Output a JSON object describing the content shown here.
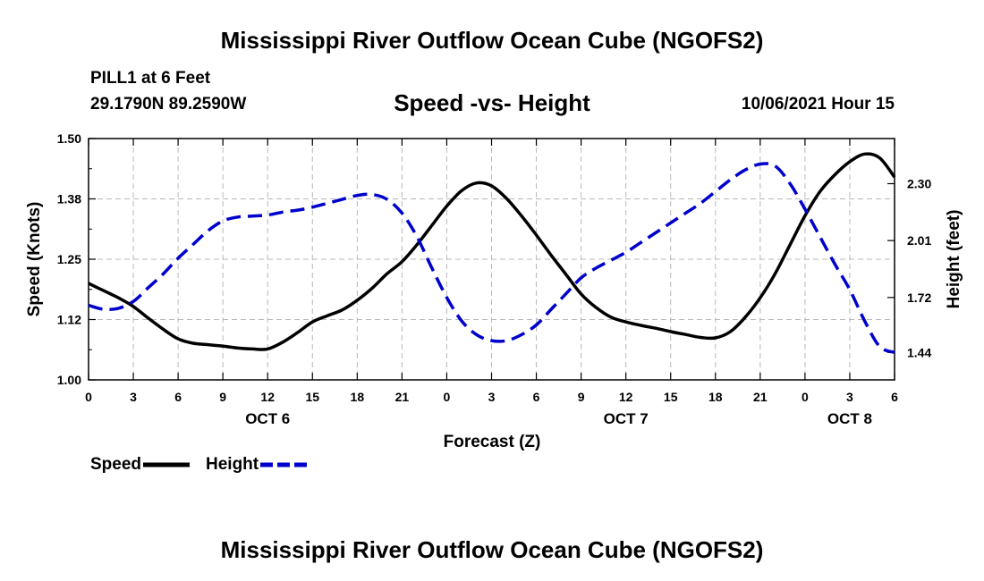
{
  "titles": {
    "top": "Mississippi River Outflow Ocean Cube (NGOFS2)",
    "bottom": "Mississippi River Outflow Ocean Cube (NGOFS2)"
  },
  "header": {
    "station": "PILL1 at 6 Feet",
    "coords": "29.1790N  89.2590W",
    "subtitle": "Speed -vs- Height",
    "datetime": "10/06/2021 Hour 15"
  },
  "chart_data": {
    "type": "line",
    "xlabel": "Forecast (Z)",
    "ylabel_left": "Speed (Knots)",
    "ylabel_right": "Height (feet)",
    "x_range": [
      0,
      54
    ],
    "x_tick_values": [
      0,
      3,
      6,
      9,
      12,
      15,
      18,
      21,
      24,
      27,
      30,
      33,
      36,
      39,
      42,
      45,
      48,
      51,
      54
    ],
    "x_tick_labels": [
      "0",
      "3",
      "6",
      "9",
      "12",
      "15",
      "18",
      "21",
      "0",
      "3",
      "6",
      "9",
      "12",
      "15",
      "18",
      "21",
      "0",
      "3",
      "6"
    ],
    "date_labels": [
      {
        "x": 12,
        "label": "OCT 6"
      },
      {
        "x": 36,
        "label": "OCT 7"
      },
      {
        "x": 51,
        "label": "OCT 8"
      }
    ],
    "y_left": {
      "range": [
        1.0,
        1.5
      ],
      "ticks": [
        1.0,
        1.125,
        1.25,
        1.375,
        1.5
      ],
      "tick_labels": [
        "1.00",
        "1.12",
        "1.25",
        "1.38",
        "1.50"
      ]
    },
    "y_right": {
      "range": [
        1.3,
        2.53
      ],
      "ticks": [
        1.44,
        1.72,
        2.01,
        2.3
      ],
      "tick_labels": [
        "1.44",
        "1.72",
        "2.01",
        "2.30"
      ]
    },
    "grid": true,
    "series": [
      {
        "name": "Speed",
        "axis": "left",
        "style": "solid",
        "color": "#000000",
        "x": [
          0,
          1,
          2,
          3,
          4,
          5,
          6,
          7,
          8,
          9,
          10,
          11,
          12,
          13,
          14,
          15,
          16,
          17,
          18,
          19,
          20,
          21,
          22,
          23,
          24,
          25,
          26,
          27,
          28,
          29,
          30,
          31,
          32,
          33,
          34,
          35,
          36,
          37,
          38,
          39,
          40,
          41,
          42,
          43,
          44,
          45,
          46,
          47,
          48,
          49,
          50,
          51,
          52,
          53,
          54
        ],
        "values": [
          1.2,
          1.185,
          1.17,
          1.152,
          1.128,
          1.105,
          1.085,
          1.076,
          1.073,
          1.07,
          1.066,
          1.064,
          1.064,
          1.078,
          1.098,
          1.12,
          1.133,
          1.145,
          1.165,
          1.19,
          1.22,
          1.245,
          1.28,
          1.32,
          1.36,
          1.392,
          1.408,
          1.402,
          1.376,
          1.34,
          1.3,
          1.258,
          1.218,
          1.178,
          1.15,
          1.13,
          1.12,
          1.113,
          1.107,
          1.1,
          1.094,
          1.088,
          1.087,
          1.1,
          1.13,
          1.17,
          1.22,
          1.28,
          1.34,
          1.39,
          1.425,
          1.452,
          1.468,
          1.46,
          1.42
        ]
      },
      {
        "name": "Height",
        "axis": "right",
        "style": "dashed",
        "color": "#0000cc",
        "x": [
          0,
          1,
          2,
          3,
          4,
          5,
          6,
          7,
          8,
          9,
          10,
          11,
          12,
          13,
          14,
          15,
          16,
          17,
          18,
          19,
          20,
          21,
          22,
          23,
          24,
          25,
          26,
          27,
          28,
          29,
          30,
          31,
          32,
          33,
          34,
          35,
          36,
          37,
          38,
          39,
          40,
          41,
          42,
          43,
          44,
          45,
          46,
          47,
          48,
          49,
          50,
          51,
          52,
          53,
          54
        ],
        "values": [
          1.68,
          1.66,
          1.665,
          1.7,
          1.77,
          1.84,
          1.92,
          1.99,
          2.06,
          2.11,
          2.13,
          2.135,
          2.14,
          2.155,
          2.165,
          2.18,
          2.2,
          2.22,
          2.24,
          2.245,
          2.22,
          2.15,
          2.03,
          1.87,
          1.72,
          1.6,
          1.53,
          1.5,
          1.5,
          1.53,
          1.58,
          1.66,
          1.74,
          1.82,
          1.87,
          1.91,
          1.95,
          2.0,
          2.05,
          2.1,
          2.15,
          2.2,
          2.26,
          2.32,
          2.37,
          2.4,
          2.39,
          2.3,
          2.17,
          2.03,
          1.89,
          1.76,
          1.6,
          1.47,
          1.44
        ]
      }
    ],
    "legend": {
      "placement": "bottom-left",
      "items": [
        "Speed",
        "Height"
      ]
    }
  }
}
